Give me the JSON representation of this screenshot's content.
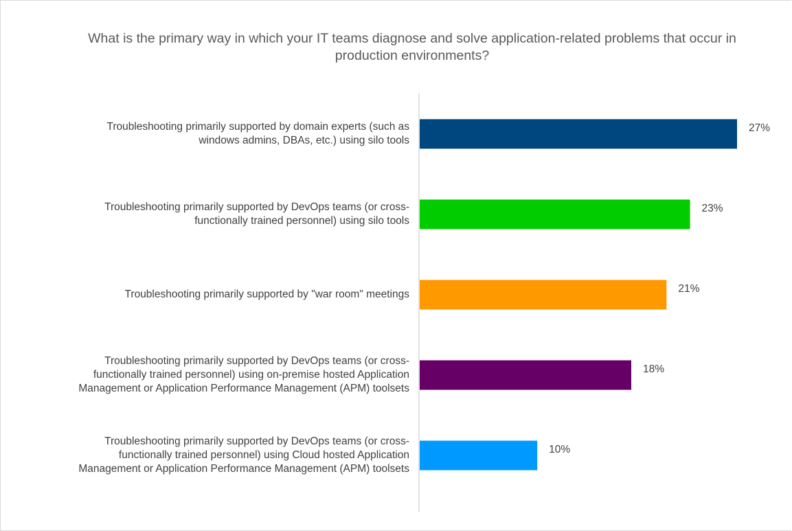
{
  "chart_data": {
    "type": "bar",
    "orientation": "horizontal",
    "title": "What is the primary way in which your IT teams diagnose and solve application-related problems that occur in production environments?",
    "categories": [
      [
        "Troubleshooting primarily supported by domain experts (such as",
        "windows admins, DBAs, etc.) using silo tools"
      ],
      [
        "Troubleshooting primarily supported by DevOps teams (or cross-",
        "functionally trained personnel) using silo tools"
      ],
      [
        "Troubleshooting primarily supported by \"war room\" meetings"
      ],
      [
        "Troubleshooting primarily supported by DevOps teams (or cross-",
        "functionally trained personnel) using on-premise hosted Application",
        "Management or Application Performance Management (APM) toolsets"
      ],
      [
        "Troubleshooting primarily supported by DevOps teams (or cross-",
        "functionally trained personnel) using Cloud hosted Application",
        "Management or Application Performance Management (APM) toolsets"
      ]
    ],
    "values": [
      27,
      23,
      21,
      18,
      10
    ],
    "value_labels": [
      "27%",
      "23%",
      "21%",
      "18%",
      "10%"
    ],
    "colors": [
      "#00467f",
      "#00cc00",
      "#ff9900",
      "#660066",
      "#0099ff"
    ],
    "xlim": [
      0,
      30
    ],
    "grid": false,
    "legend": "none"
  }
}
